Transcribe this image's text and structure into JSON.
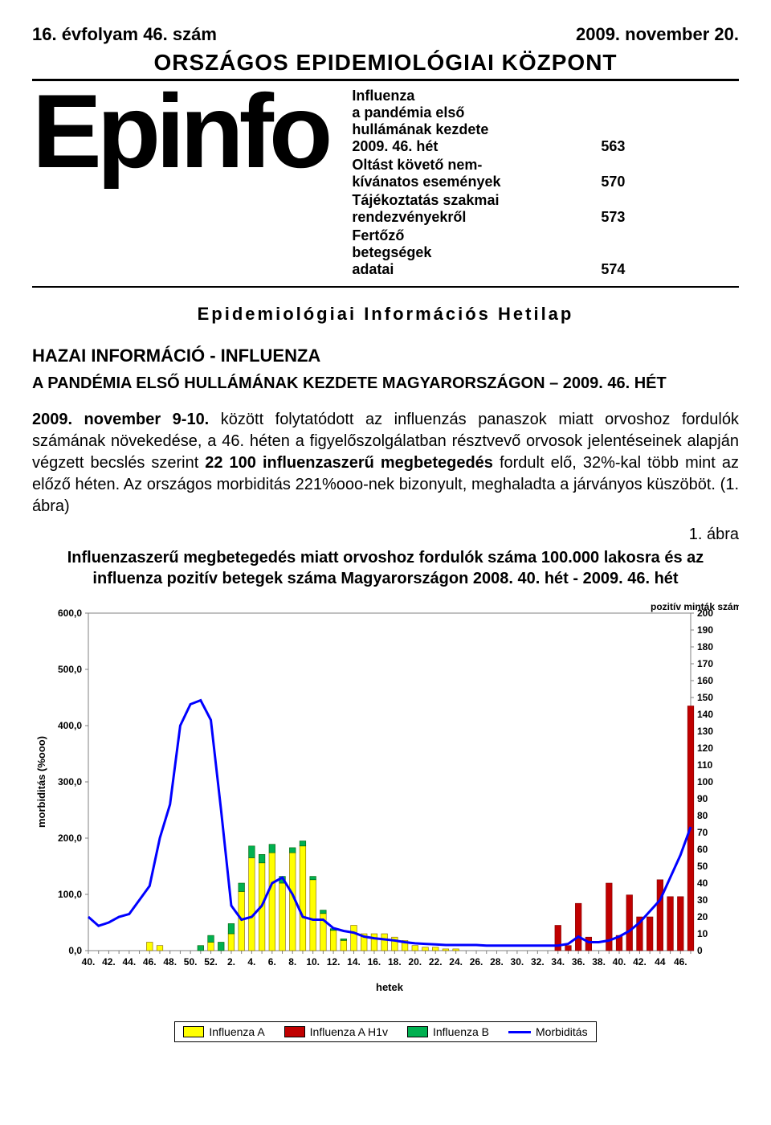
{
  "header": {
    "volume": "16. évfolyam 46. szám",
    "date": "2009. november 20.",
    "org": "ORSZÁGOS EPIDEMIOLÓGIAI KÖZPONT"
  },
  "logo_text": "Epinfo",
  "toc": {
    "items": [
      {
        "label": "Influenza\na pandémia első\nhullámának kezdete\n2009. 46. hét",
        "page": "563"
      },
      {
        "label": "Oltást követő nem-\nkívánatos események",
        "page": "570"
      },
      {
        "label": "Tájékoztatás szakmai\nrendezvényekről",
        "page": "573"
      },
      {
        "label": "Fertőző\nbetegségek\nadatai",
        "page": "574"
      }
    ]
  },
  "subheader": "Epidemiológiai Információs Hetilap",
  "section_title": "HAZAI INFORMÁCIÓ - INFLUENZA",
  "section_sub": "A PANDÉMIA ELSŐ HULLÁMÁNAK KEZDETE MAGYARORSZÁGON – 2009. 46. HÉT",
  "body": "2009. november 9-10. között folytatódott az influenzás panaszok miatt orvoshoz fordulók számának növekedése, a 46. héten a figyelőszolgálatban résztvevő orvosok jelentéseinek alapján végzett becslés szerint 22 100 influenzaszerű megbetegedés fordult elő, 32%-kal több mint az előző héten. Az országos morbiditás 221%ooo-nek bizonyult, meghaladta a járványos küszöböt. (1. ábra)",
  "fig_label": "1. ábra",
  "chart": {
    "title": "Influenzaszerű megbetegedés miatt orvoshoz fordulók száma 100.000 lakosra és az influenza pozitív betegek száma Magyarországon 2008. 40. hét - 2009. 46. hét",
    "type": "combo-bar-line",
    "background_color": "#ffffff",
    "plot_border_color": "#808080",
    "grid_color": "#c0c0c0",
    "tick_color": "#808080",
    "font_size_axis": 12,
    "font_size_label": 13,
    "y_left": {
      "label": "morbiditás (%ooo)",
      "min": 0,
      "max": 600,
      "step": 100,
      "tick_labels": [
        "0,0",
        "100,0",
        "200,0",
        "300,0",
        "400,0",
        "500,0",
        "600,0"
      ]
    },
    "y_right": {
      "label": "pozitív minták száma",
      "min": 0,
      "max": 200,
      "step": 10,
      "tick_labels": [
        "0",
        "10",
        "20",
        "30",
        "40",
        "50",
        "60",
        "70",
        "80",
        "90",
        "100",
        "110",
        "120",
        "130",
        "140",
        "150",
        "160",
        "170",
        "180",
        "190",
        "200"
      ]
    },
    "x": {
      "label": "hetek",
      "tick_labels": [
        "40.",
        "42.",
        "44.",
        "46.",
        "48.",
        "50.",
        "52.",
        "2.",
        "4.",
        "6.",
        "8.",
        "10.",
        "12.",
        "14.",
        "16.",
        "18.",
        "20.",
        "22.",
        "24.",
        "26.",
        "28.",
        "30.",
        "32.",
        "34.",
        "36.",
        "38.",
        "40.",
        "42.",
        "44",
        "46."
      ]
    },
    "series": {
      "morbidity_line": {
        "color": "#0000ff",
        "width": 3,
        "values": [
          60,
          44,
          50,
          60,
          65,
          90,
          115,
          200,
          260,
          400,
          438,
          445,
          410,
          250,
          80,
          55,
          60,
          80,
          120,
          130,
          100,
          60,
          55,
          55,
          40,
          35,
          32,
          25,
          22,
          20,
          18,
          15,
          13,
          12,
          11,
          10,
          10,
          10,
          10,
          9,
          9,
          9,
          9,
          9,
          9,
          9,
          9,
          12,
          25,
          15,
          15,
          18,
          25,
          35,
          50,
          70,
          90,
          130,
          170,
          220
        ]
      },
      "influenza_a": {
        "color": "#ffff00",
        "border": "#806000",
        "values": [
          0,
          0,
          0,
          0,
          0,
          0,
          5,
          3,
          0,
          0,
          0,
          0,
          5,
          0,
          10,
          35,
          55,
          52,
          58,
          40,
          58,
          62,
          42,
          22,
          12,
          6,
          15,
          10,
          10,
          10,
          8,
          6,
          3,
          2,
          2,
          1,
          1,
          0,
          0,
          0,
          0,
          0,
          0,
          0,
          0,
          0,
          0,
          0,
          0,
          0,
          0,
          0,
          0,
          0,
          0,
          0,
          0,
          0,
          0,
          0
        ]
      },
      "influenza_a_h1v": {
        "color": "#c00000",
        "border": "#800000",
        "values": [
          0,
          0,
          0,
          0,
          0,
          0,
          0,
          0,
          0,
          0,
          0,
          0,
          0,
          0,
          0,
          0,
          0,
          0,
          0,
          0,
          0,
          0,
          0,
          0,
          0,
          0,
          0,
          0,
          0,
          0,
          0,
          0,
          0,
          0,
          0,
          0,
          0,
          0,
          0,
          0,
          0,
          0,
          0,
          0,
          0,
          0,
          15,
          3,
          28,
          8,
          0,
          40,
          9,
          33,
          20,
          20,
          42,
          32,
          32,
          145
        ]
      },
      "influenza_b": {
        "color": "#00b050",
        "border": "#006000",
        "values": [
          0,
          0,
          0,
          0,
          0,
          0,
          0,
          0,
          0,
          0,
          0,
          3,
          4,
          5,
          6,
          5,
          7,
          5,
          5,
          4,
          3,
          3,
          2,
          2,
          1,
          1,
          0,
          0,
          0,
          0,
          0,
          0,
          0,
          0,
          0,
          0,
          0,
          0,
          0,
          0,
          0,
          0,
          0,
          0,
          0,
          0,
          0,
          0,
          0,
          0,
          0,
          0,
          0,
          0,
          0,
          0,
          0,
          0,
          0,
          0
        ]
      }
    },
    "legend": [
      {
        "label": "Influenza A",
        "color": "#ffff00",
        "type": "box"
      },
      {
        "label": "Influenza A H1v",
        "color": "#c00000",
        "type": "box"
      },
      {
        "label": "Influenza B",
        "color": "#00b050",
        "type": "box"
      },
      {
        "label": "Morbiditás",
        "color": "#0000ff",
        "type": "line"
      }
    ]
  }
}
